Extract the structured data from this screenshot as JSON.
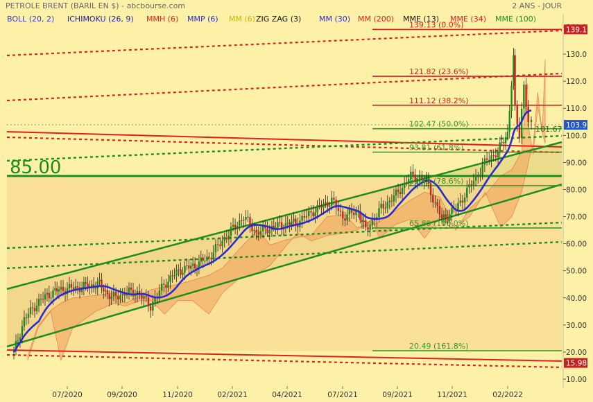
{
  "header": {
    "title": "PETROLE BRENT (BARIL EN $) - abcbourse.com",
    "period": "2 ANS - JOUR"
  },
  "indicators": [
    {
      "label": "BOLL (20, 2)",
      "color": "#2e39c8"
    },
    {
      "label": "ICHIMOKU (26, 9)",
      "color": "#1a1ab0"
    },
    {
      "label": "MMH (6)",
      "color": "#e02020"
    },
    {
      "label": "MMP (6)",
      "color": "#2a2ad0"
    },
    {
      "label": "MM (6)",
      "color": "#c8b400"
    },
    {
      "label": "ZIG ZAG (3)",
      "color": "#111111"
    },
    {
      "label": "MM (30)",
      "color": "#2a2ad0"
    },
    {
      "label": "MM (200)",
      "color": "#e02020"
    },
    {
      "label": "MME (13)",
      "color": "#111111"
    },
    {
      "label": "MME (34)",
      "color": "#e02020"
    },
    {
      "label": "MME (100)",
      "color": "#18901a"
    }
  ],
  "chart_data": {
    "type": "candlestick",
    "title": "PETROLE BRENT (BARIL EN $)",
    "ylim": [
      10,
      140
    ],
    "y_ticks": [
      "10.00",
      "20.00",
      "30.00",
      "40.00",
      "50.00",
      "60.00",
      "70.00",
      "80.00",
      "90.00",
      "100.0",
      "110.0",
      "120.0",
      "130.0",
      "140.0"
    ],
    "x_ticks": [
      "07/2020",
      "09/2020",
      "11/2020",
      "02/2021",
      "04/2021",
      "07/2021",
      "09/2021",
      "11/2021",
      "02/2022"
    ],
    "grid": false,
    "price_badges": [
      {
        "text": "139.1",
        "value": 139.13,
        "color": "#c82020"
      },
      {
        "text": "103.9",
        "value": 103.9,
        "color": "#2255cc"
      },
      {
        "text": "15.98",
        "value": 15.98,
        "color": "#c82020"
      }
    ],
    "horizontal_level": {
      "label": "85.00",
      "value": 85.0,
      "color": "#1e8c1e"
    },
    "fibonacci_levels": [
      {
        "label": "139.13  (0.0%)",
        "value": 139.13,
        "color": "#d82020"
      },
      {
        "label": "121.82  (23.6%)",
        "value": 121.82,
        "color": "#d82020"
      },
      {
        "label": "111.12  (38.2%)",
        "value": 111.12,
        "color": "#d82020"
      },
      {
        "label": "102.47  (50.0%)",
        "value": 102.47,
        "color": "#2a9a2a"
      },
      {
        "label": "93.81  (61.8%)",
        "value": 93.81,
        "color": "#2a9a2a"
      },
      {
        "label": "81.43  (78.6%)",
        "value": 81.43,
        "color": "#2a9a2a"
      },
      {
        "label": "65.80  (100.0%)",
        "value": 65.8,
        "color": "#2a9a2a"
      },
      {
        "label": "20.49  (161.8%)",
        "value": 20.49,
        "color": "#2a9a2a"
      }
    ],
    "annotation": {
      "label": "101.67",
      "value": 101.67
    },
    "close_series": [
      {
        "date": "2020-05-01",
        "value": 20
      },
      {
        "date": "2020-05-15",
        "value": 32
      },
      {
        "date": "2020-06-01",
        "value": 38
      },
      {
        "date": "2020-06-15",
        "value": 41
      },
      {
        "date": "2020-07-01",
        "value": 43
      },
      {
        "date": "2020-08-01",
        "value": 44
      },
      {
        "date": "2020-08-25",
        "value": 45
      },
      {
        "date": "2020-09-10",
        "value": 40
      },
      {
        "date": "2020-10-01",
        "value": 42
      },
      {
        "date": "2020-10-15",
        "value": 42
      },
      {
        "date": "2020-11-02",
        "value": 37
      },
      {
        "date": "2020-11-20",
        "value": 45
      },
      {
        "date": "2020-12-10",
        "value": 50
      },
      {
        "date": "2021-01-01",
        "value": 52
      },
      {
        "date": "2021-01-20",
        "value": 55
      },
      {
        "date": "2021-02-10",
        "value": 62
      },
      {
        "date": "2021-03-08",
        "value": 70
      },
      {
        "date": "2021-03-25",
        "value": 64
      },
      {
        "date": "2021-04-15",
        "value": 66
      },
      {
        "date": "2021-05-01",
        "value": 67
      },
      {
        "date": "2021-05-20",
        "value": 68
      },
      {
        "date": "2021-06-10",
        "value": 72
      },
      {
        "date": "2021-07-05",
        "value": 76
      },
      {
        "date": "2021-07-20",
        "value": 70
      },
      {
        "date": "2021-08-10",
        "value": 72
      },
      {
        "date": "2021-08-20",
        "value": 65
      },
      {
        "date": "2021-09-10",
        "value": 73
      },
      {
        "date": "2021-09-30",
        "value": 78
      },
      {
        "date": "2021-10-20",
        "value": 85
      },
      {
        "date": "2021-11-10",
        "value": 83
      },
      {
        "date": "2021-12-01",
        "value": 69
      },
      {
        "date": "2021-12-20",
        "value": 73
      },
      {
        "date": "2022-01-10",
        "value": 82
      },
      {
        "date": "2022-01-31",
        "value": 91
      },
      {
        "date": "2022-02-15",
        "value": 94
      },
      {
        "date": "2022-02-28",
        "value": 101
      },
      {
        "date": "2022-03-08",
        "value": 128
      },
      {
        "date": "2022-03-10",
        "value": 110
      },
      {
        "date": "2022-03-16",
        "value": 100
      },
      {
        "date": "2022-03-22",
        "value": 119
      },
      {
        "date": "2022-03-28",
        "value": 104
      },
      {
        "date": "2022-04-01",
        "value": 103.9
      }
    ]
  }
}
